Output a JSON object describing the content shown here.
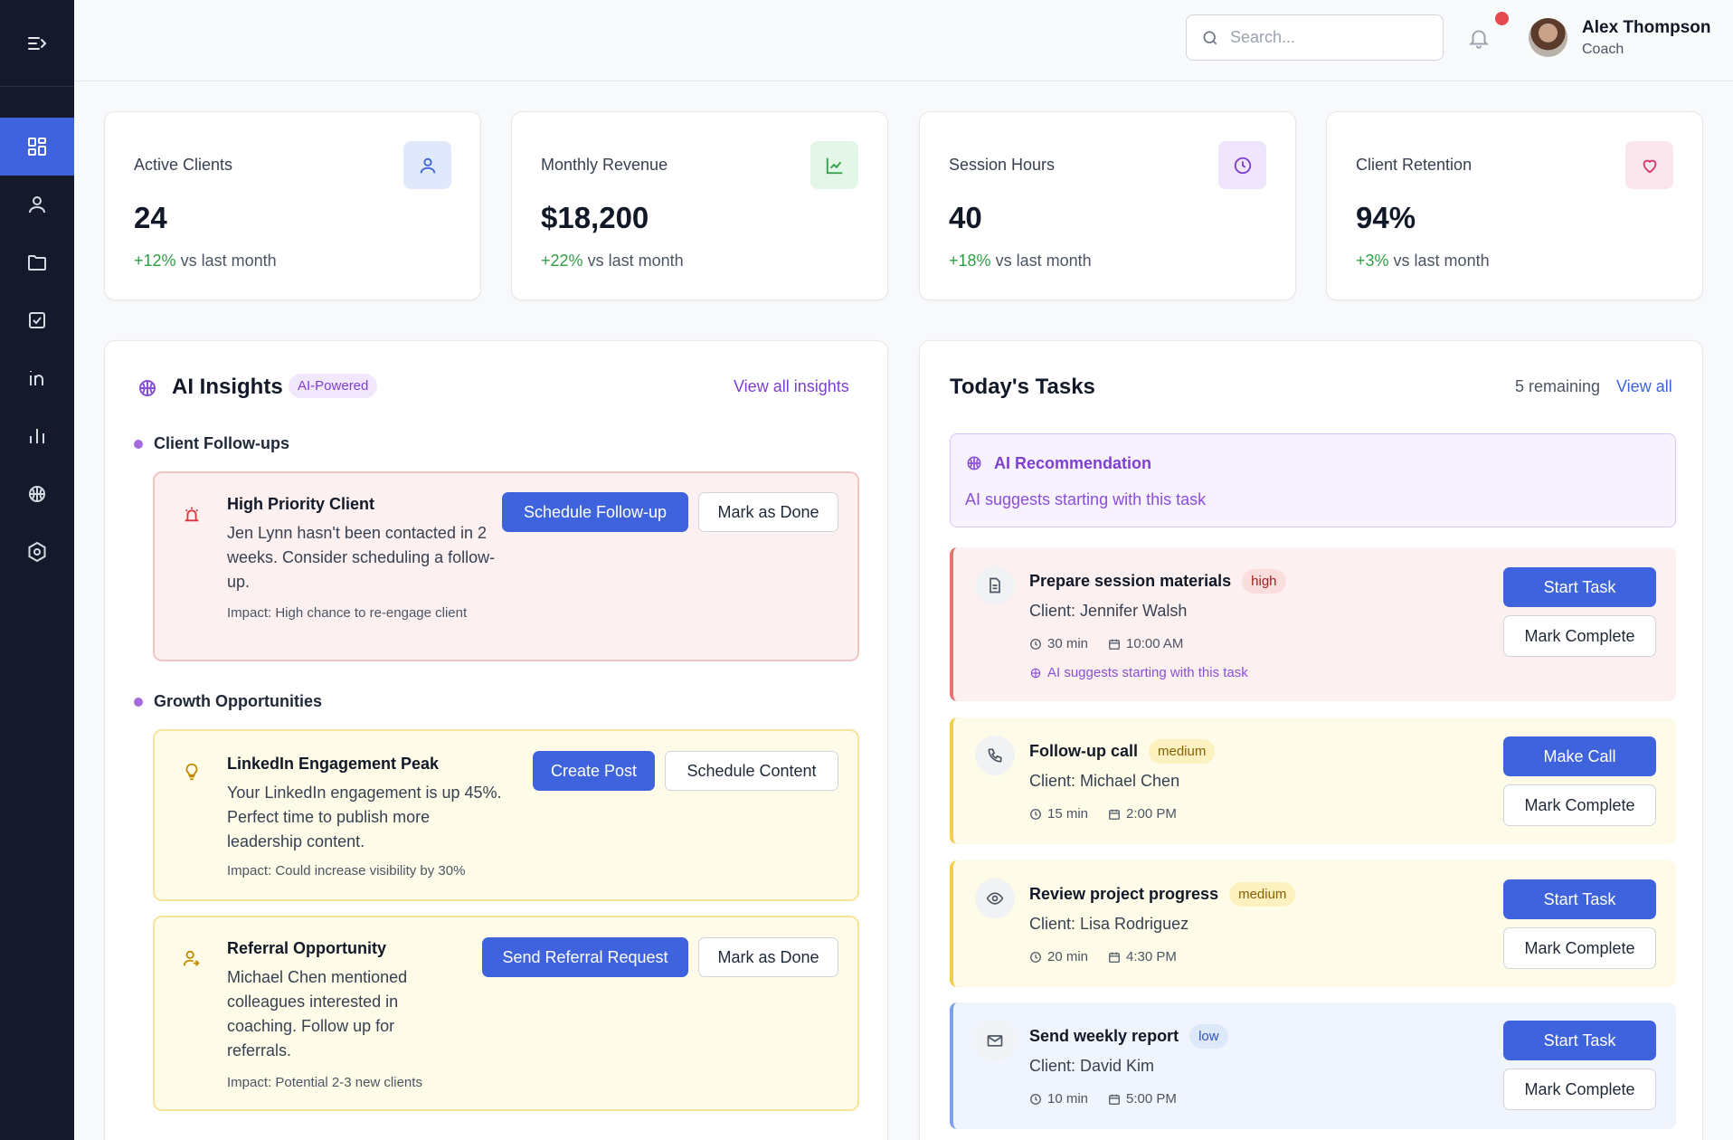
{
  "header": {
    "search_placeholder": "Search...",
    "user_name": "Alex Thompson",
    "user_role": "Coach"
  },
  "stats": [
    {
      "label": "Active Clients",
      "value": "24",
      "change": "+12%",
      "suffix": "vs last month",
      "icon": "user-icon",
      "icon_bg": "#dfe9fb",
      "icon_color": "#3e63dd"
    },
    {
      "label": "Monthly Revenue",
      "value": "$18,200",
      "change": "+22%",
      "suffix": "vs last month",
      "icon": "chart-line-icon",
      "icon_bg": "#e3f6e7",
      "icon_color": "#2f9e44"
    },
    {
      "label": "Session Hours",
      "value": "40",
      "change": "+18%",
      "suffix": "vs last month",
      "icon": "clock-icon",
      "icon_bg": "#efe5fc",
      "icon_color": "#7e3fd1"
    },
    {
      "label": "Client Retention",
      "value": "94%",
      "change": "+3%",
      "suffix": "vs last month",
      "icon": "heart-icon",
      "icon_bg": "#fce6ee",
      "icon_color": "#d6336c"
    }
  ],
  "insights": {
    "title": "AI Insights",
    "badge": "AI-Powered",
    "view_all": "View all insights",
    "section_followups": "Client Follow-ups",
    "section_growth": "Growth Opportunities",
    "items": [
      {
        "title": "High Priority Client",
        "description": "Jen Lynn hasn't been contacted in 2 weeks. Consider scheduling a follow-up.",
        "impact": "Impact: High chance to re-engage client",
        "primary": "Schedule Follow-up",
        "secondary": "Mark as Done",
        "icon": "alarm-icon"
      },
      {
        "title": "LinkedIn Engagement Peak",
        "description": "Your LinkedIn engagement is up 45%. Perfect time to publish more leadership content.",
        "impact": "Impact: Could increase visibility by 30%",
        "primary": "Create Post",
        "secondary": "Schedule Content",
        "icon": "lightbulb-icon"
      },
      {
        "title": "Referral Opportunity",
        "description": "Michael Chen mentioned colleagues interested in coaching. Follow up for referrals.",
        "impact": "Impact: Potential 2-3 new clients",
        "primary": "Send Referral Request",
        "secondary": "Mark as Done",
        "icon": "user-plus-icon"
      }
    ]
  },
  "tasks": {
    "title": "Today's Tasks",
    "remaining": "5 remaining",
    "view_all": "View all",
    "recommendation_title": "AI Recommendation",
    "recommendation_text": "AI suggests starting with this task",
    "mark_complete": "Mark Complete",
    "items": [
      {
        "title": "Prepare session materials",
        "priority": "high",
        "client": "Client: Jennifer Walsh",
        "duration": "30 min",
        "time": "10:00 AM",
        "action": "Start Task",
        "ai_note": "AI suggests starting with this task",
        "icon": "document-icon"
      },
      {
        "title": "Follow-up call",
        "priority": "medium",
        "client": "Client: Michael Chen",
        "duration": "15 min",
        "time": "2:00 PM",
        "action": "Make Call",
        "icon": "phone-icon"
      },
      {
        "title": "Review project progress",
        "priority": "medium",
        "client": "Client: Lisa Rodriguez",
        "duration": "20 min",
        "time": "4:30 PM",
        "action": "Start Task",
        "icon": "eye-icon"
      },
      {
        "title": "Send weekly report",
        "priority": "low",
        "client": "Client: David Kim",
        "duration": "10 min",
        "time": "5:00 PM",
        "action": "Start Task",
        "icon": "mail-icon"
      }
    ]
  },
  "sidebar": {
    "items": [
      "dashboard-icon",
      "user-icon",
      "folder-icon",
      "checkbox-icon",
      "linkedin-icon",
      "bar-chart-icon",
      "brain-icon",
      "settings-icon"
    ]
  }
}
